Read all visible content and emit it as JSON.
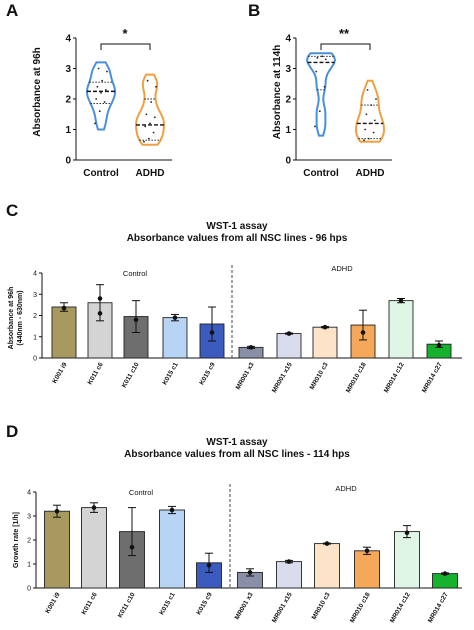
{
  "panels": {
    "A": "A",
    "B": "B",
    "C": "C",
    "D": "D"
  },
  "chart_data": [
    {
      "id": "A",
      "type": "violin",
      "ylabel": "Absorbance at 96h",
      "ylim": [
        0,
        4
      ],
      "yticks": [
        0,
        1,
        2,
        3,
        4
      ],
      "categories": [
        "Control",
        "ADHD"
      ],
      "significance": "*",
      "colors": [
        "#4a90d9",
        "#f0a040"
      ],
      "groups": [
        {
          "name": "Control",
          "min": 1.0,
          "max": 3.2,
          "median": 2.25,
          "q1": 1.85,
          "q3": 2.55,
          "points": [
            1.2,
            1.6,
            1.9,
            2.0,
            2.2,
            2.3,
            2.4,
            2.6,
            2.9,
            3.0
          ]
        },
        {
          "name": "ADHD",
          "min": 0.5,
          "max": 2.8,
          "median": 1.15,
          "q1": 0.65,
          "q3": 2.0,
          "points": [
            0.6,
            0.7,
            0.9,
            1.1,
            1.2,
            1.4,
            1.5,
            1.9,
            2.4,
            2.6
          ]
        }
      ]
    },
    {
      "id": "B",
      "type": "violin",
      "ylabel": "Absorbance at 114h",
      "ylim": [
        0,
        4
      ],
      "yticks": [
        0,
        1,
        2,
        3,
        4
      ],
      "categories": [
        "Control",
        "ADHD"
      ],
      "significance": "**",
      "colors": [
        "#4a90d9",
        "#f0a040"
      ],
      "groups": [
        {
          "name": "Control",
          "min": 0.8,
          "max": 3.5,
          "median": 3.2,
          "q1": 2.3,
          "q3": 3.4,
          "points": [
            1.1,
            1.6,
            2.4,
            2.9,
            3.2,
            3.3,
            3.35,
            3.4
          ]
        },
        {
          "name": "ADHD",
          "min": 0.6,
          "max": 2.6,
          "median": 1.2,
          "q1": 0.7,
          "q3": 1.8,
          "points": [
            0.65,
            0.7,
            0.9,
            1.0,
            1.2,
            1.3,
            1.5,
            1.8,
            2.0,
            2.3
          ]
        }
      ]
    },
    {
      "id": "C",
      "type": "bar",
      "title": "WST-1 assay",
      "subtitle": "Absorbance values from all NSC lines - 96 hps",
      "ylabel": "Absorbance at 96h",
      "ylabel2": "(440nm - 630nm)",
      "ylim": [
        0,
        4
      ],
      "yticks": [
        0,
        1,
        2,
        3,
        4
      ],
      "group_labels": [
        "Control",
        "ADHD"
      ],
      "categories": [
        "K001 i9",
        "K011 c6",
        "K011 c10",
        "K015 c1",
        "K015 c9",
        "MR001 x3",
        "MR001 x15",
        "MR010 c3",
        "MR010 c18",
        "MR014 c12",
        "MR014 c27"
      ],
      "values": [
        2.4,
        2.6,
        1.95,
        1.9,
        1.6,
        0.5,
        1.15,
        1.45,
        1.55,
        2.7,
        0.65
      ],
      "errors": [
        0.2,
        0.85,
        0.75,
        0.15,
        0.8,
        0.05,
        0.03,
        0.03,
        0.7,
        0.1,
        0.15
      ],
      "points": [
        [
          2.35
        ],
        [
          2.1,
          2.8
        ],
        [
          1.8
        ],
        [
          1.9
        ],
        [
          1.2
        ],
        [
          0.5
        ],
        [
          1.15
        ],
        [
          1.45
        ],
        [
          1.2
        ],
        [
          2.7
        ],
        [
          0.6
        ]
      ],
      "colors": [
        "#a89a5e",
        "#d4d4d4",
        "#6e6e6e",
        "#b8d4f4",
        "#3b5bbf",
        "#8a8fa8",
        "#d8dced",
        "#fde3c8",
        "#f5a85a",
        "#dff5e6",
        "#16b22e"
      ]
    },
    {
      "id": "D",
      "type": "bar",
      "title": "WST-1 assay",
      "subtitle": "Absorbance values from all NSC lines - 114 hps",
      "ylabel": "Growth rate [1/h]",
      "ylim": [
        0,
        4
      ],
      "yticks": [
        0,
        1,
        2,
        3,
        4
      ],
      "group_labels": [
        "Control",
        "ADHD"
      ],
      "categories": [
        "K001 i9",
        "K011 c6",
        "K011 c10",
        "K015 c1",
        "K015 c9",
        "MR001 x3",
        "MR001 x15",
        "MR010 c3",
        "MR010 c18",
        "MR014 c12",
        "MR014 c27"
      ],
      "values": [
        3.2,
        3.35,
        2.35,
        3.25,
        1.05,
        0.65,
        1.1,
        1.85,
        1.55,
        2.35,
        0.6
      ],
      "errors": [
        0.25,
        0.2,
        1.0,
        0.15,
        0.4,
        0.15,
        0.05,
        0.02,
        0.15,
        0.25,
        0.03
      ],
      "points": [
        [
          3.2
        ],
        [
          3.35
        ],
        [
          1.7
        ],
        [
          3.25
        ],
        [
          0.95
        ],
        [
          0.65
        ],
        [
          1.1
        ],
        [
          1.85
        ],
        [
          1.55
        ],
        [
          2.3
        ],
        [
          0.6
        ]
      ],
      "colors": [
        "#a89a5e",
        "#d4d4d4",
        "#6e6e6e",
        "#b8d4f4",
        "#3b5bbf",
        "#8a8fa8",
        "#d8dced",
        "#fde3c8",
        "#f5a85a",
        "#dff5e6",
        "#16b22e"
      ]
    }
  ]
}
